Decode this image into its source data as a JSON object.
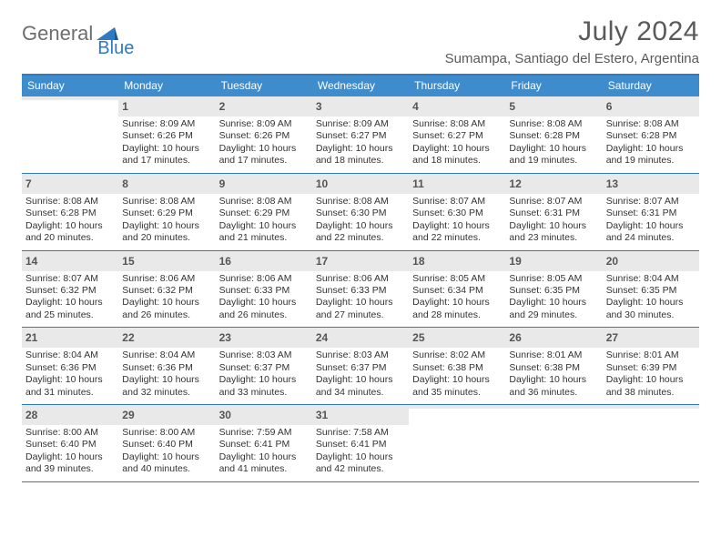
{
  "brand": {
    "part1": "General",
    "part2": "Blue"
  },
  "title": "July 2024",
  "location": "Sumampa, Santiago del Estero, Argentina",
  "colors": {
    "header_bar": "#3e8ccc",
    "accent_border": "#2f7ac0",
    "daynum_bg": "#e9e9e9",
    "text": "#333333",
    "muted": "#5a5a5a"
  },
  "weekdays": [
    "Sunday",
    "Monday",
    "Tuesday",
    "Wednesday",
    "Thursday",
    "Friday",
    "Saturday"
  ],
  "weeks": [
    [
      {
        "n": "",
        "sr": "",
        "ss": "",
        "dl": ""
      },
      {
        "n": "1",
        "sr": "Sunrise: 8:09 AM",
        "ss": "Sunset: 6:26 PM",
        "dl": "Daylight: 10 hours and 17 minutes."
      },
      {
        "n": "2",
        "sr": "Sunrise: 8:09 AM",
        "ss": "Sunset: 6:26 PM",
        "dl": "Daylight: 10 hours and 17 minutes."
      },
      {
        "n": "3",
        "sr": "Sunrise: 8:09 AM",
        "ss": "Sunset: 6:27 PM",
        "dl": "Daylight: 10 hours and 18 minutes."
      },
      {
        "n": "4",
        "sr": "Sunrise: 8:08 AM",
        "ss": "Sunset: 6:27 PM",
        "dl": "Daylight: 10 hours and 18 minutes."
      },
      {
        "n": "5",
        "sr": "Sunrise: 8:08 AM",
        "ss": "Sunset: 6:28 PM",
        "dl": "Daylight: 10 hours and 19 minutes."
      },
      {
        "n": "6",
        "sr": "Sunrise: 8:08 AM",
        "ss": "Sunset: 6:28 PM",
        "dl": "Daylight: 10 hours and 19 minutes."
      }
    ],
    [
      {
        "n": "7",
        "sr": "Sunrise: 8:08 AM",
        "ss": "Sunset: 6:28 PM",
        "dl": "Daylight: 10 hours and 20 minutes."
      },
      {
        "n": "8",
        "sr": "Sunrise: 8:08 AM",
        "ss": "Sunset: 6:29 PM",
        "dl": "Daylight: 10 hours and 20 minutes."
      },
      {
        "n": "9",
        "sr": "Sunrise: 8:08 AM",
        "ss": "Sunset: 6:29 PM",
        "dl": "Daylight: 10 hours and 21 minutes."
      },
      {
        "n": "10",
        "sr": "Sunrise: 8:08 AM",
        "ss": "Sunset: 6:30 PM",
        "dl": "Daylight: 10 hours and 22 minutes."
      },
      {
        "n": "11",
        "sr": "Sunrise: 8:07 AM",
        "ss": "Sunset: 6:30 PM",
        "dl": "Daylight: 10 hours and 22 minutes."
      },
      {
        "n": "12",
        "sr": "Sunrise: 8:07 AM",
        "ss": "Sunset: 6:31 PM",
        "dl": "Daylight: 10 hours and 23 minutes."
      },
      {
        "n": "13",
        "sr": "Sunrise: 8:07 AM",
        "ss": "Sunset: 6:31 PM",
        "dl": "Daylight: 10 hours and 24 minutes."
      }
    ],
    [
      {
        "n": "14",
        "sr": "Sunrise: 8:07 AM",
        "ss": "Sunset: 6:32 PM",
        "dl": "Daylight: 10 hours and 25 minutes."
      },
      {
        "n": "15",
        "sr": "Sunrise: 8:06 AM",
        "ss": "Sunset: 6:32 PM",
        "dl": "Daylight: 10 hours and 26 minutes."
      },
      {
        "n": "16",
        "sr": "Sunrise: 8:06 AM",
        "ss": "Sunset: 6:33 PM",
        "dl": "Daylight: 10 hours and 26 minutes."
      },
      {
        "n": "17",
        "sr": "Sunrise: 8:06 AM",
        "ss": "Sunset: 6:33 PM",
        "dl": "Daylight: 10 hours and 27 minutes."
      },
      {
        "n": "18",
        "sr": "Sunrise: 8:05 AM",
        "ss": "Sunset: 6:34 PM",
        "dl": "Daylight: 10 hours and 28 minutes."
      },
      {
        "n": "19",
        "sr": "Sunrise: 8:05 AM",
        "ss": "Sunset: 6:35 PM",
        "dl": "Daylight: 10 hours and 29 minutes."
      },
      {
        "n": "20",
        "sr": "Sunrise: 8:04 AM",
        "ss": "Sunset: 6:35 PM",
        "dl": "Daylight: 10 hours and 30 minutes."
      }
    ],
    [
      {
        "n": "21",
        "sr": "Sunrise: 8:04 AM",
        "ss": "Sunset: 6:36 PM",
        "dl": "Daylight: 10 hours and 31 minutes."
      },
      {
        "n": "22",
        "sr": "Sunrise: 8:04 AM",
        "ss": "Sunset: 6:36 PM",
        "dl": "Daylight: 10 hours and 32 minutes."
      },
      {
        "n": "23",
        "sr": "Sunrise: 8:03 AM",
        "ss": "Sunset: 6:37 PM",
        "dl": "Daylight: 10 hours and 33 minutes."
      },
      {
        "n": "24",
        "sr": "Sunrise: 8:03 AM",
        "ss": "Sunset: 6:37 PM",
        "dl": "Daylight: 10 hours and 34 minutes."
      },
      {
        "n": "25",
        "sr": "Sunrise: 8:02 AM",
        "ss": "Sunset: 6:38 PM",
        "dl": "Daylight: 10 hours and 35 minutes."
      },
      {
        "n": "26",
        "sr": "Sunrise: 8:01 AM",
        "ss": "Sunset: 6:38 PM",
        "dl": "Daylight: 10 hours and 36 minutes."
      },
      {
        "n": "27",
        "sr": "Sunrise: 8:01 AM",
        "ss": "Sunset: 6:39 PM",
        "dl": "Daylight: 10 hours and 38 minutes."
      }
    ],
    [
      {
        "n": "28",
        "sr": "Sunrise: 8:00 AM",
        "ss": "Sunset: 6:40 PM",
        "dl": "Daylight: 10 hours and 39 minutes."
      },
      {
        "n": "29",
        "sr": "Sunrise: 8:00 AM",
        "ss": "Sunset: 6:40 PM",
        "dl": "Daylight: 10 hours and 40 minutes."
      },
      {
        "n": "30",
        "sr": "Sunrise: 7:59 AM",
        "ss": "Sunset: 6:41 PM",
        "dl": "Daylight: 10 hours and 41 minutes."
      },
      {
        "n": "31",
        "sr": "Sunrise: 7:58 AM",
        "ss": "Sunset: 6:41 PM",
        "dl": "Daylight: 10 hours and 42 minutes."
      },
      {
        "n": "",
        "sr": "",
        "ss": "",
        "dl": ""
      },
      {
        "n": "",
        "sr": "",
        "ss": "",
        "dl": ""
      },
      {
        "n": "",
        "sr": "",
        "ss": "",
        "dl": ""
      }
    ]
  ]
}
